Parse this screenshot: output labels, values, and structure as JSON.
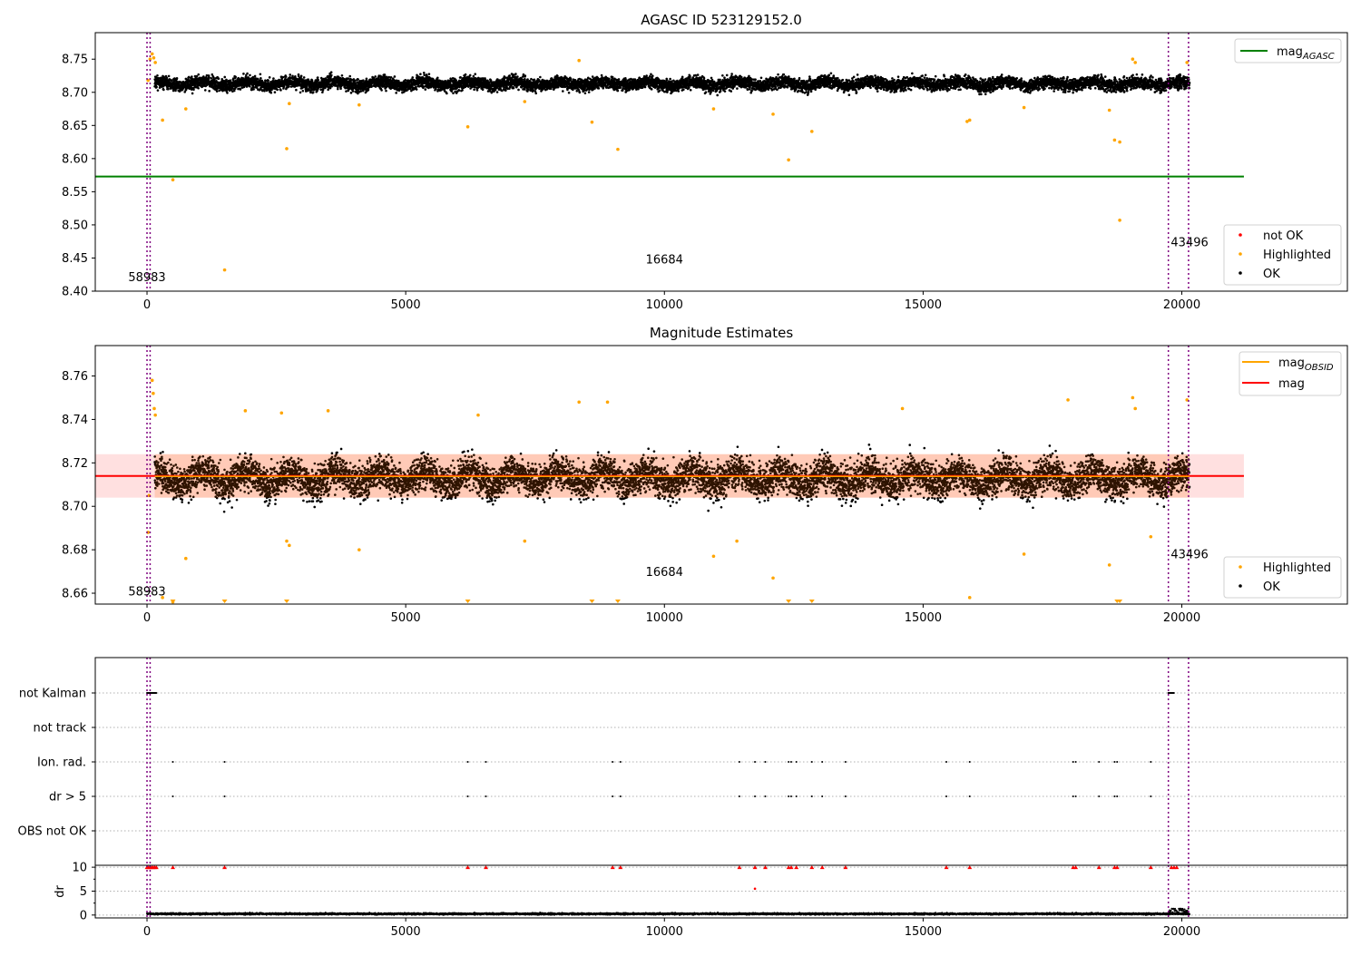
{
  "chart_data": [
    {
      "type": "scatter",
      "title": "AGASC ID 523129152.0",
      "xlim": [
        -1000,
        23200
      ],
      "ylim": [
        8.4,
        8.79
      ],
      "xticks": [
        0,
        5000,
        10000,
        15000,
        20000
      ],
      "xtick_labels": [
        "0",
        "5000",
        "10000",
        "15000",
        "20000"
      ],
      "yticks": [
        8.4,
        8.45,
        8.5,
        8.55,
        8.6,
        8.65,
        8.7,
        8.75
      ],
      "ytick_labels": [
        "8.40",
        "8.45",
        "8.50",
        "8.55",
        "8.60",
        "8.65",
        "8.70",
        "8.75"
      ],
      "grid": false,
      "obsid_boundaries": [
        0,
        60,
        19740,
        20130
      ],
      "obsid_labels": [
        {
          "x": 0,
          "y": 8.415,
          "text": "58983"
        },
        {
          "x": 10000,
          "y": 8.442,
          "text": "16684"
        },
        {
          "x": 20150,
          "y": 8.468,
          "text": "43496"
        }
      ],
      "reference_lines": [
        {
          "name_main": "mag",
          "name_sub": "AGASC",
          "value": 8.573,
          "x_range": [
            -1000,
            21200
          ],
          "color": "#008000"
        }
      ],
      "legend_top": {
        "position": "top-right",
        "entries": [
          {
            "main": "mag",
            "sub": "AGASC",
            "color": "#008000"
          }
        ]
      },
      "legend_bottom": {
        "position": "lower-right",
        "entries": [
          {
            "label": "not OK",
            "color": "#ff0000"
          },
          {
            "label": "Highlighted",
            "color": "#ffa500"
          },
          {
            "label": "OK",
            "color": "#000000"
          }
        ]
      },
      "series": [
        {
          "name": "OK",
          "color": "#000000",
          "band": {
            "x_range": [
              150,
              20150
            ],
            "center": 8.713,
            "spread": 0.012
          }
        },
        {
          "name": "Highlighted",
          "color": "#ffa500",
          "points": [
            [
              20,
              8.718
            ],
            [
              60,
              8.75
            ],
            [
              100,
              8.758
            ],
            [
              130,
              8.752
            ],
            [
              160,
              8.745
            ],
            [
              300,
              8.658
            ],
            [
              500,
              8.568
            ],
            [
              750,
              8.675
            ],
            [
              1500,
              8.432
            ],
            [
              2700,
              8.615
            ],
            [
              2750,
              8.683
            ],
            [
              6200,
              8.648
            ],
            [
              8600,
              8.655
            ],
            [
              8350,
              8.748
            ],
            [
              9100,
              8.614
            ],
            [
              10950,
              8.675
            ],
            [
              12100,
              8.667
            ],
            [
              12400,
              8.598
            ],
            [
              12850,
              8.641
            ],
            [
              15850,
              8.656
            ],
            [
              15900,
              8.658
            ],
            [
              16950,
              8.677
            ],
            [
              18700,
              8.628
            ],
            [
              18800,
              8.625
            ],
            [
              18800,
              8.507
            ],
            [
              19050,
              8.75
            ],
            [
              19100,
              8.745
            ],
            [
              20100,
              8.745
            ],
            [
              4100,
              8.681
            ],
            [
              7300,
              8.686
            ],
            [
              18600,
              8.673
            ]
          ]
        }
      ]
    },
    {
      "type": "scatter",
      "title": "Magnitude Estimates",
      "xlim": [
        -1000,
        23200
      ],
      "ylim": [
        8.655,
        8.774
      ],
      "xticks": [
        0,
        5000,
        10000,
        15000,
        20000
      ],
      "xtick_labels": [
        "0",
        "5000",
        "10000",
        "15000",
        "20000"
      ],
      "yticks": [
        8.66,
        8.68,
        8.7,
        8.72,
        8.74,
        8.76
      ],
      "ytick_labels": [
        "8.66",
        "8.68",
        "8.70",
        "8.72",
        "8.74",
        "8.76"
      ],
      "grid": false,
      "obsid_boundaries": [
        0,
        60,
        19740,
        20130
      ],
      "obsid_labels": [
        {
          "x": 0,
          "y": 8.659,
          "text": "58983"
        },
        {
          "x": 10000,
          "y": 8.668,
          "text": "16684"
        },
        {
          "x": 20150,
          "y": 8.676,
          "text": "43496"
        }
      ],
      "reference_lines": [
        {
          "name": "mag",
          "value": 8.714,
          "x_range": [
            -1000,
            21200
          ],
          "color": "#ff0000",
          "band": [
            8.704,
            8.724
          ]
        },
        {
          "name_main": "mag",
          "name_sub": "OBSID",
          "value": 8.714,
          "x_range": [
            150,
            20150
          ],
          "color": "#ffa500"
        }
      ],
      "legend_top": {
        "position": "top-right",
        "entries": [
          {
            "main": "mag",
            "sub": "OBSID",
            "color": "#ffa500"
          },
          {
            "label": "mag",
            "color": "#ff0000"
          }
        ]
      },
      "legend_bottom": {
        "position": "lower-right",
        "entries": [
          {
            "label": "Highlighted",
            "color": "#ffa500"
          },
          {
            "label": "OK",
            "color": "#000000"
          }
        ]
      },
      "series": [
        {
          "name": "OK",
          "color": "#000000",
          "band": {
            "x_range": [
              150,
              20150
            ],
            "center": 8.713,
            "spread": 0.01
          }
        },
        {
          "name": "Highlighted",
          "color": "#ffa500",
          "points": [
            [
              100,
              8.758
            ],
            [
              120,
              8.752
            ],
            [
              140,
              8.745
            ],
            [
              160,
              8.742
            ],
            [
              20,
              8.688
            ],
            [
              40,
              8.705
            ],
            [
              750,
              8.676
            ],
            [
              300,
              8.658
            ],
            [
              500,
              8.656
            ],
            [
              2700,
              8.684
            ],
            [
              2750,
              8.682
            ],
            [
              4100,
              8.68
            ],
            [
              7300,
              8.684
            ],
            [
              10950,
              8.677
            ],
            [
              11400,
              8.684
            ],
            [
              12100,
              8.667
            ],
            [
              15900,
              8.658
            ],
            [
              16950,
              8.678
            ],
            [
              18600,
              8.673
            ],
            [
              19050,
              8.75
            ],
            [
              19100,
              8.745
            ],
            [
              19400,
              8.686
            ],
            [
              8350,
              8.748
            ],
            [
              8900,
              8.748
            ],
            [
              1900,
              8.744
            ],
            [
              3500,
              8.744
            ],
            [
              14600,
              8.745
            ],
            [
              17800,
              8.749
            ],
            [
              20100,
              8.749
            ],
            [
              2600,
              8.743
            ],
            [
              6400,
              8.742
            ]
          ]
        },
        {
          "name": "Highlighted-below-range",
          "color": "#ffa500",
          "x": [
            500,
            1500,
            2700,
            6200,
            8600,
            9100,
            12400,
            12850,
            18750,
            18800
          ]
        }
      ]
    },
    {
      "type": "scatter",
      "title": "",
      "xlim": [
        -1000,
        23200
      ],
      "xticks": [
        0,
        5000,
        10000,
        15000,
        20000
      ],
      "xtick_labels": [
        "0",
        "5000",
        "10000",
        "15000",
        "20000"
      ],
      "obsid_boundaries": [
        0,
        60,
        19740,
        20130
      ],
      "flag_rows": [
        "not Kalman",
        "not track",
        "Ion. rad.",
        "dr > 5",
        "OBS not OK"
      ],
      "flag_points": {
        "not Kalman": [
          [
            0,
            180
          ],
          [
            19740,
            19850
          ]
        ],
        "not track": [],
        "Ion. rad.": [
          500,
          1500,
          6200,
          6550,
          9000,
          9150,
          11450,
          11750,
          11950,
          12400,
          12450,
          12550,
          12850,
          13050,
          13500,
          15450,
          15900,
          17900,
          17950,
          18400,
          18700,
          18750,
          19400
        ],
        "dr > 5": [
          500,
          1500,
          6200,
          6550,
          9000,
          9150,
          11450,
          11750,
          11950,
          12400,
          12450,
          12550,
          12850,
          13050,
          13500,
          15450,
          15900,
          17900,
          17950,
          18400,
          18700,
          18750,
          19400
        ],
        "OBS not OK": []
      },
      "dr_panel": {
        "ylabel": "dr",
        "yticks": [
          0,
          5,
          10
        ],
        "ytick_labels": [
          "0",
          "5",
          "10"
        ],
        "ylim": [
          -0.6,
          10.4
        ],
        "red_at_10": [
          0,
          30,
          60,
          90,
          120,
          150,
          180,
          500,
          1500,
          6200,
          6550,
          9000,
          9150,
          11450,
          11750,
          11950,
          12400,
          12450,
          12550,
          12850,
          13050,
          13500,
          15450,
          15900,
          17900,
          17950,
          18400,
          18700,
          18750,
          19400,
          19800,
          19850,
          19900
        ],
        "red_other": [
          [
            11750,
            5.5
          ]
        ],
        "ok_band": {
          "x_range": [
            0,
            20150
          ],
          "center": 0.25,
          "spread": 0.25
        }
      }
    }
  ]
}
